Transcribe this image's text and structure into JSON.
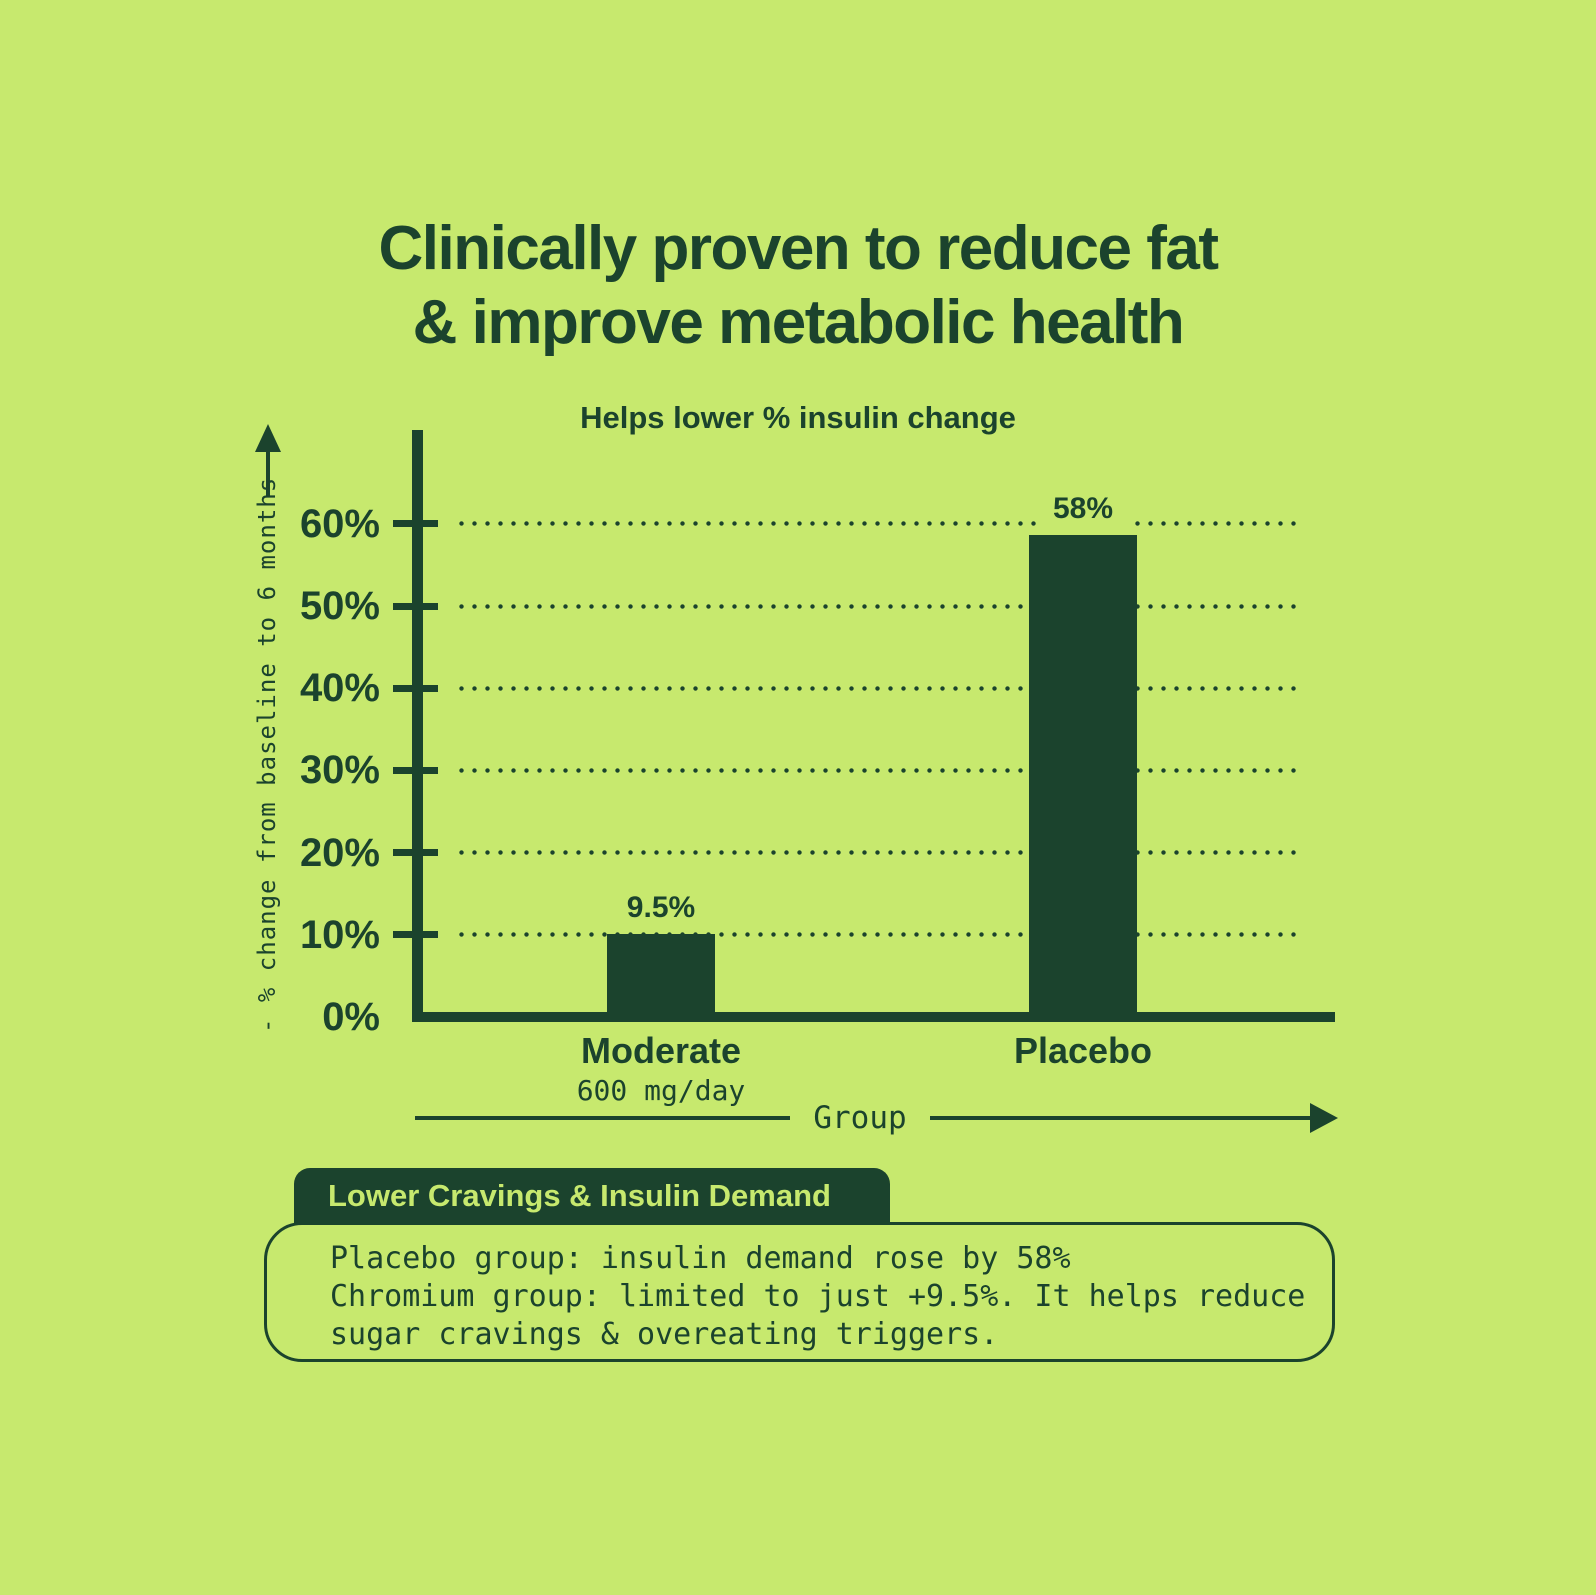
{
  "colors": {
    "background": "#c7e96e",
    "ink": "#1b432d"
  },
  "title": {
    "line1": "Clinically proven to reduce fat",
    "line2": "& improve metabolic health"
  },
  "chart_data": {
    "type": "bar",
    "title": "Helps lower % insulin change",
    "categories": [
      "Moderate",
      "Placebo"
    ],
    "category_sublabels": [
      "600 mg/day",
      ""
    ],
    "values": [
      9.5,
      58
    ],
    "value_labels": [
      "9.5%",
      "58%"
    ],
    "xlabel": "Group",
    "ylabel": "- % change from baseline to 6 months",
    "ylim": [
      0,
      60
    ],
    "ytick_step": 10,
    "yticks": [
      "0%",
      "10%",
      "20%",
      "30%",
      "40%",
      "50%",
      "60%"
    ],
    "grid": "dotted-horizontal",
    "legend": "none",
    "bar_color": "#1b432d"
  },
  "callout": {
    "heading": "Lower Cravings & Insulin Demand",
    "body_lines": [
      "Placebo group: insulin demand rose by 58%",
      "Chromium group: limited to just +9.5%. It helps reduce",
      "sugar cravings & overeating triggers."
    ]
  }
}
